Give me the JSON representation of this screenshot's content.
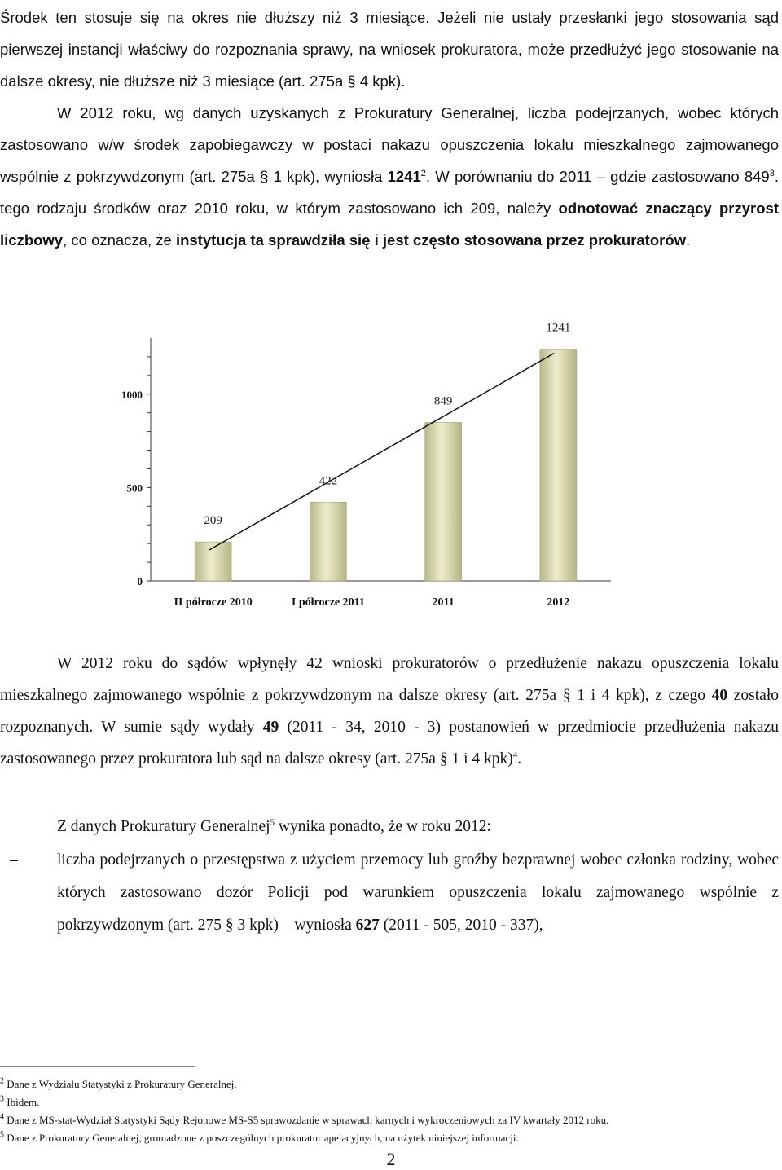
{
  "intro": {
    "line1": "Środek ten stosuje się na okres nie dłuższy niż 3 miesiące. Jeżeli nie ustały przesłanki jego stosowania sąd pierwszej instancji właściwy do rozpoznania sprawy, na wniosek prokuratora, może przedłużyć jego stosowanie na dalsze okresy, nie dłuższe niż 3 miesiące (art. 275a § 4 kpk)."
  },
  "para1": {
    "part1": "W 2012 roku, wg danych uzyskanych z Prokuratury Generalnej, liczba podejrzanych, wobec których zastosowano w/w środek zapobiegawczy w postaci nakazu opuszczenia lokalu mieszkalnego zajmowanego wspólnie z pokrzywdzonym (art. 275a § 1 kpk), wyniosła ",
    "value_2012": "1241",
    "fn2": "2",
    "part2": ". W porównaniu do 2011 – gdzie zastosowano 849",
    "fn3": "3",
    "part3": ". tego rodzaju środków oraz 2010 roku, w którym zastosowano ich 209, należy ",
    "bold1": "odnotować znaczący przyrost liczbowy",
    "part4": ", co oznacza, że ",
    "bold2": "instytucja ta sprawdziła się i jest często stosowana przez prokuratorów",
    "part5": "."
  },
  "chart_data": {
    "type": "bar",
    "categories": [
      "II półrocze 2010",
      "I półrocze 2011",
      "2011",
      "2012"
    ],
    "values": [
      209,
      422,
      849,
      1241
    ],
    "data_labels": [
      "209",
      "422",
      "849",
      "1241"
    ],
    "y_ticks": [
      0,
      500,
      1000
    ],
    "ylim": [
      0,
      1300
    ],
    "trendline": true,
    "bar_color": "#d9d9b0",
    "grid": false
  },
  "para2": {
    "part1": "W 2012 roku do sądów wpłynęły 42 wnioski prokuratorów o przedłużenie nakazu opuszczenia lokalu mieszkalnego zajmowanego wspólnie z pokrzywdzonym na dalsze okresy (art. 275a § 1 i 4 kpk), z czego ",
    "bold1": "40",
    "part2": " zostało rozpoznanych. W sumie sądy wydały ",
    "bold2": "49",
    "part3": " (2011 - 34, 2010 - 3) postanowień w przedmiocie przedłużenia nakazu zastosowanego przez prokuratora lub sąd na dalsze okresy (art. 275a § 1 i 4 kpk)",
    "fn4": "4",
    "part4": "."
  },
  "para3": {
    "part1": "Z danych Prokuratury Generalnej",
    "fn5": "5",
    "part2": " wynika ponadto, że w roku 2012:"
  },
  "bullet1": {
    "dash": "–",
    "part1": "liczba podejrzanych o przestępstwa z użyciem przemocy lub groźby bezprawnej wobec członka rodziny, wobec których zastosowano dozór Policji pod warunkiem opuszczenia lokalu zajmowanego wspólnie z pokrzywdzonym (art. 275 § 3 kpk) – wyniosła ",
    "bold1": "627",
    "part2": " (2011 - 505, 2010 - 337),"
  },
  "footnotes": [
    {
      "num": "2",
      "text": " Dane z Wydziału Statystyki z Prokuratury Generalnej."
    },
    {
      "num": "3",
      "text": " Ibidem."
    },
    {
      "num": "4",
      "text": " Dane z MS-stat-Wydział Statystyki Sądy Rejonowe MS-S5 sprawozdanie w sprawach karnych i wykroczeniowych za IV kwartały 2012 roku."
    },
    {
      "num": "5",
      "text": " Dane z Prokuratury Generalnej, gromadzone z poszczególnych prokuratur apelacyjnych, na użytek niniejszej informacji."
    }
  ],
  "page_number": "2"
}
